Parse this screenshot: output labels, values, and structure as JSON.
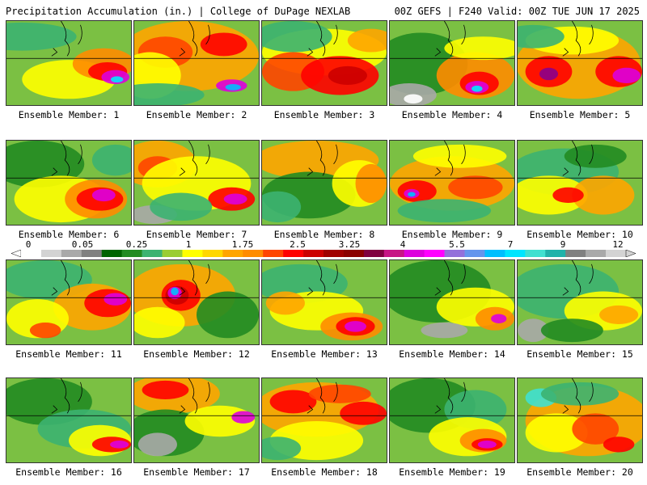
{
  "header": {
    "left": "Precipitation Accumulation (in.) | College of DuPage NEXLAB",
    "right": "00Z GEFS | F240 Valid: 00Z TUE JUN 17 2025"
  },
  "panels": [
    {
      "label": "Ensemble Member: 1",
      "blobs": [
        [
          "#3cb371",
          20,
          20,
          70,
          18
        ],
        [
          "#ffff00",
          80,
          75,
          60,
          25
        ],
        [
          "#ff8c00",
          125,
          55,
          40,
          20
        ],
        [
          "#ff0000",
          130,
          65,
          25,
          12
        ],
        [
          "#dd00dd",
          140,
          72,
          18,
          9
        ],
        [
          "#00e5ff",
          142,
          75,
          8,
          4
        ]
      ]
    },
    {
      "label": "Ensemble Member: 2",
      "blobs": [
        [
          "#ffa500",
          70,
          45,
          90,
          45
        ],
        [
          "#ff4500",
          40,
          40,
          35,
          20
        ],
        [
          "#ff0000",
          115,
          30,
          30,
          15
        ],
        [
          "#ffff00",
          20,
          70,
          40,
          30
        ],
        [
          "#dd00dd",
          125,
          83,
          20,
          8
        ],
        [
          "#00bfff",
          127,
          85,
          10,
          4
        ],
        [
          "#3cb371",
          30,
          95,
          60,
          15
        ]
      ]
    },
    {
      "label": "Ensemble Member: 3",
      "blobs": [
        [
          "#ffff00",
          80,
          40,
          80,
          30
        ],
        [
          "#ff4500",
          40,
          65,
          40,
          25
        ],
        [
          "#ff0000",
          100,
          70,
          50,
          25
        ],
        [
          "#cc0000",
          110,
          70,
          25,
          12
        ],
        [
          "#3cb371",
          40,
          20,
          50,
          20
        ],
        [
          "#ffa500",
          140,
          25,
          30,
          15
        ]
      ]
    },
    {
      "label": "Ensemble Member: 4",
      "blobs": [
        [
          "#228b22",
          40,
          55,
          60,
          40
        ],
        [
          "#a9a9a9",
          25,
          95,
          35,
          15
        ],
        [
          "#ffffff",
          30,
          100,
          12,
          6
        ],
        [
          "#ff8c00",
          110,
          70,
          50,
          30
        ],
        [
          "#ff0000",
          115,
          80,
          25,
          15
        ],
        [
          "#dd00dd",
          112,
          85,
          15,
          8
        ],
        [
          "#00e5ff",
          112,
          87,
          7,
          4
        ],
        [
          "#ffff00",
          120,
          35,
          50,
          15
        ]
      ]
    },
    {
      "label": "Ensemble Member: 5",
      "blobs": [
        [
          "#ffa500",
          78,
          55,
          80,
          45
        ],
        [
          "#ff0000",
          40,
          65,
          30,
          20
        ],
        [
          "#8b008b",
          40,
          68,
          12,
          8
        ],
        [
          "#ff0000",
          130,
          65,
          30,
          20
        ],
        [
          "#dd00dd",
          140,
          70,
          18,
          10
        ],
        [
          "#ffff00",
          70,
          25,
          60,
          18
        ],
        [
          "#3cb371",
          20,
          20,
          40,
          15
        ]
      ]
    },
    {
      "label": "Ensemble Member: 6",
      "blobs": [
        [
          "#228b22",
          40,
          30,
          60,
          30
        ],
        [
          "#ffff00",
          70,
          75,
          60,
          30
        ],
        [
          "#ff8c00",
          115,
          75,
          40,
          25
        ],
        [
          "#ff0000",
          120,
          75,
          30,
          15
        ],
        [
          "#dd00dd",
          125,
          70,
          15,
          8
        ],
        [
          "#3cb371",
          140,
          25,
          30,
          20
        ]
      ]
    },
    {
      "label": "Ensemble Member: 7",
      "blobs": [
        [
          "#ffa500",
          30,
          30,
          50,
          30
        ],
        [
          "#ff4500",
          30,
          35,
          25,
          15
        ],
        [
          "#ffff00",
          80,
          55,
          70,
          35
        ],
        [
          "#ff0000",
          125,
          75,
          30,
          15
        ],
        [
          "#dd00dd",
          130,
          75,
          15,
          7
        ],
        [
          "#a9a9a9",
          25,
          95,
          30,
          12
        ],
        [
          "#3cb371",
          60,
          85,
          40,
          18
        ]
      ]
    },
    {
      "label": "Ensemble Member: 8",
      "blobs": [
        [
          "#ffa500",
          70,
          25,
          80,
          25
        ],
        [
          "#228b22",
          60,
          70,
          60,
          30
        ],
        [
          "#ffff00",
          125,
          55,
          35,
          30
        ],
        [
          "#ff8c00",
          140,
          55,
          20,
          25
        ],
        [
          "#3cb371",
          20,
          85,
          30,
          20
        ]
      ]
    },
    {
      "label": "Ensemble Member: 9",
      "blobs": [
        [
          "#ffa500",
          80,
          55,
          80,
          35
        ],
        [
          "#ff0000",
          35,
          65,
          25,
          14
        ],
        [
          "#dd00dd",
          28,
          68,
          10,
          6
        ],
        [
          "#00bfff",
          28,
          69,
          5,
          3
        ],
        [
          "#ff4500",
          110,
          60,
          35,
          15
        ],
        [
          "#3cb371",
          70,
          90,
          60,
          15
        ],
        [
          "#ffff00",
          90,
          20,
          60,
          15
        ]
      ]
    },
    {
      "label": "Ensemble Member: 10",
      "blobs": [
        [
          "#3cb371",
          60,
          40,
          70,
          30
        ],
        [
          "#ffff00",
          40,
          70,
          50,
          25
        ],
        [
          "#ffa500",
          110,
          70,
          40,
          25
        ],
        [
          "#ff0000",
          65,
          70,
          20,
          10
        ],
        [
          "#228b22",
          100,
          20,
          40,
          15
        ]
      ]
    },
    {
      "label": "Ensemble Member: 11",
      "blobs": [
        [
          "#3cb371",
          50,
          25,
          60,
          25
        ],
        [
          "#ffa500",
          110,
          60,
          50,
          30
        ],
        [
          "#ff0000",
          130,
          55,
          30,
          18
        ],
        [
          "#dd00dd",
          140,
          50,
          15,
          8
        ],
        [
          "#ffff00",
          40,
          75,
          40,
          25
        ],
        [
          "#ff4500",
          50,
          90,
          20,
          10
        ]
      ]
    },
    {
      "label": "Ensemble Member: 12",
      "blobs": [
        [
          "#ffa500",
          60,
          45,
          70,
          40
        ],
        [
          "#ff0000",
          60,
          45,
          25,
          20
        ],
        [
          "#cc0000",
          55,
          45,
          15,
          12
        ],
        [
          "#dd00dd",
          52,
          42,
          9,
          8
        ],
        [
          "#00bfff",
          52,
          40,
          5,
          5
        ],
        [
          "#ffff00",
          30,
          80,
          35,
          20
        ],
        [
          "#228b22",
          120,
          70,
          40,
          30
        ]
      ]
    },
    {
      "label": "Ensemble Member: 13",
      "blobs": [
        [
          "#3cb371",
          50,
          30,
          60,
          25
        ],
        [
          "#ffff00",
          70,
          65,
          60,
          25
        ],
        [
          "#ff8c00",
          115,
          85,
          40,
          18
        ],
        [
          "#ff0000",
          120,
          85,
          25,
          12
        ],
        [
          "#dd00dd",
          120,
          85,
          14,
          7
        ],
        [
          "#ffa500",
          30,
          55,
          25,
          15
        ]
      ]
    },
    {
      "label": "Ensemble Member: 14",
      "blobs": [
        [
          "#228b22",
          60,
          40,
          70,
          40
        ],
        [
          "#ffff00",
          110,
          60,
          50,
          25
        ],
        [
          "#ff8c00",
          135,
          75,
          25,
          15
        ],
        [
          "#dd00dd",
          140,
          75,
          10,
          6
        ],
        [
          "#a9a9a9",
          70,
          90,
          30,
          10
        ]
      ]
    },
    {
      "label": "Ensemble Member: 15",
      "blobs": [
        [
          "#3cb371",
          60,
          40,
          70,
          35
        ],
        [
          "#ffff00",
          110,
          65,
          50,
          25
        ],
        [
          "#ffa500",
          130,
          70,
          25,
          12
        ],
        [
          "#a9a9a9",
          20,
          90,
          20,
          15
        ],
        [
          "#228b22",
          70,
          90,
          40,
          15
        ]
      ]
    },
    {
      "label": "Ensemble Member: 16",
      "blobs": [
        [
          "#228b22",
          50,
          30,
          60,
          30
        ],
        [
          "#3cb371",
          100,
          65,
          60,
          25
        ],
        [
          "#ffff00",
          120,
          80,
          40,
          20
        ],
        [
          "#ff0000",
          135,
          85,
          25,
          10
        ],
        [
          "#dd00dd",
          145,
          85,
          12,
          5
        ]
      ]
    },
    {
      "label": "Ensemble Member: 17",
      "blobs": [
        [
          "#ffa500",
          50,
          20,
          60,
          25
        ],
        [
          "#ff0000",
          40,
          15,
          30,
          12
        ],
        [
          "#228b22",
          40,
          70,
          50,
          30
        ],
        [
          "#a9a9a9",
          30,
          85,
          25,
          15
        ],
        [
          "#ffff00",
          110,
          55,
          45,
          20
        ],
        [
          "#dd00dd",
          140,
          50,
          15,
          8
        ]
      ]
    },
    {
      "label": "Ensemble Member: 18",
      "blobs": [
        [
          "#ffa500",
          70,
          40,
          80,
          35
        ],
        [
          "#ff0000",
          40,
          30,
          30,
          15
        ],
        [
          "#ff0000",
          130,
          45,
          30,
          15
        ],
        [
          "#ff4500",
          100,
          20,
          40,
          12
        ],
        [
          "#ffff00",
          70,
          80,
          60,
          25
        ],
        [
          "#3cb371",
          20,
          90,
          30,
          15
        ]
      ]
    },
    {
      "label": "Ensemble Member: 19",
      "blobs": [
        [
          "#228b22",
          50,
          35,
          60,
          35
        ],
        [
          "#3cb371",
          110,
          40,
          40,
          25
        ],
        [
          "#ffff00",
          100,
          75,
          50,
          25
        ],
        [
          "#ff8c00",
          120,
          80,
          30,
          15
        ],
        [
          "#ff0000",
          125,
          85,
          20,
          8
        ],
        [
          "#dd00dd",
          125,
          85,
          12,
          5
        ]
      ]
    },
    {
      "label": "Ensemble Member: 20",
      "blobs": [
        [
          "#ffa500",
          90,
          55,
          80,
          45
        ],
        [
          "#40e0d0",
          30,
          25,
          20,
          12
        ],
        [
          "#ffff00",
          50,
          70,
          40,
          25
        ],
        [
          "#ff4500",
          100,
          65,
          30,
          20
        ],
        [
          "#ff0000",
          130,
          85,
          20,
          10
        ],
        [
          "#3cb371",
          80,
          20,
          50,
          15
        ]
      ]
    }
  ],
  "colorbar": {
    "labels": [
      "0",
      "0.05",
      "0.25",
      "1",
      "1.75",
      "2.5",
      "3.25",
      "4",
      "5.5",
      "7",
      "9",
      "12"
    ],
    "colors": [
      "#ffffff",
      "#d3d3d3",
      "#a9a9a9",
      "#808080",
      "#006400",
      "#228b22",
      "#3cb371",
      "#9acd32",
      "#ffff00",
      "#ffd700",
      "#ffa500",
      "#ff8c00",
      "#ff4500",
      "#ff0000",
      "#cc0000",
      "#a00000",
      "#8b0000",
      "#800040",
      "#c71585",
      "#dd00dd",
      "#ff00ff",
      "#9370db",
      "#6495ed",
      "#00bfff",
      "#00e5ff",
      "#40e0d0",
      "#20b2aa",
      "#808080",
      "#a9a9a9",
      "#d3d3d3"
    ]
  }
}
